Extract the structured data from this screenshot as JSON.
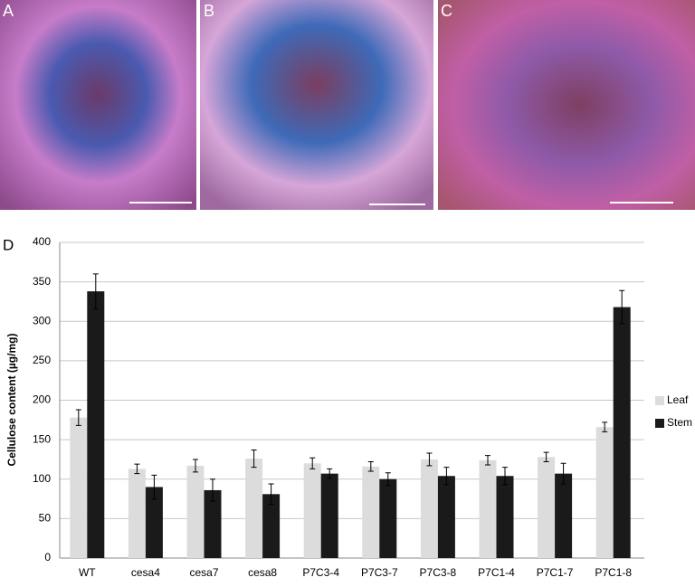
{
  "panel_labels": [
    "A",
    "B",
    "C",
    "D"
  ],
  "chart_data": {
    "type": "bar",
    "ylabel": "Cellulose content (µg/mg)",
    "categories": [
      "WT",
      "cesa4",
      "cesa7",
      "cesa8",
      "P7C3-4",
      "P7C3-7",
      "P7C3-8",
      "P7C1-4",
      "P7C1-7",
      "P7C1-8"
    ],
    "series": [
      {
        "name": "Leaf",
        "color": "#dcdcdc",
        "values": [
          178,
          113,
          117,
          126,
          120,
          116,
          125,
          124,
          128,
          166
        ],
        "errors": [
          10,
          6,
          8,
          11,
          7,
          6,
          8,
          6,
          6,
          6
        ]
      },
      {
        "name": "Stem",
        "color": "#1a1a1a",
        "values": [
          338,
          90,
          86,
          81,
          107,
          100,
          104,
          104,
          107,
          318
        ],
        "errors": [
          22,
          15,
          14,
          13,
          6,
          8,
          11,
          11,
          13,
          21
        ]
      }
    ],
    "ylim": [
      0,
      400
    ],
    "yticks": [
      0,
      50,
      100,
      150,
      200,
      250,
      300,
      350,
      400
    ],
    "grid": true,
    "legend": "right"
  }
}
